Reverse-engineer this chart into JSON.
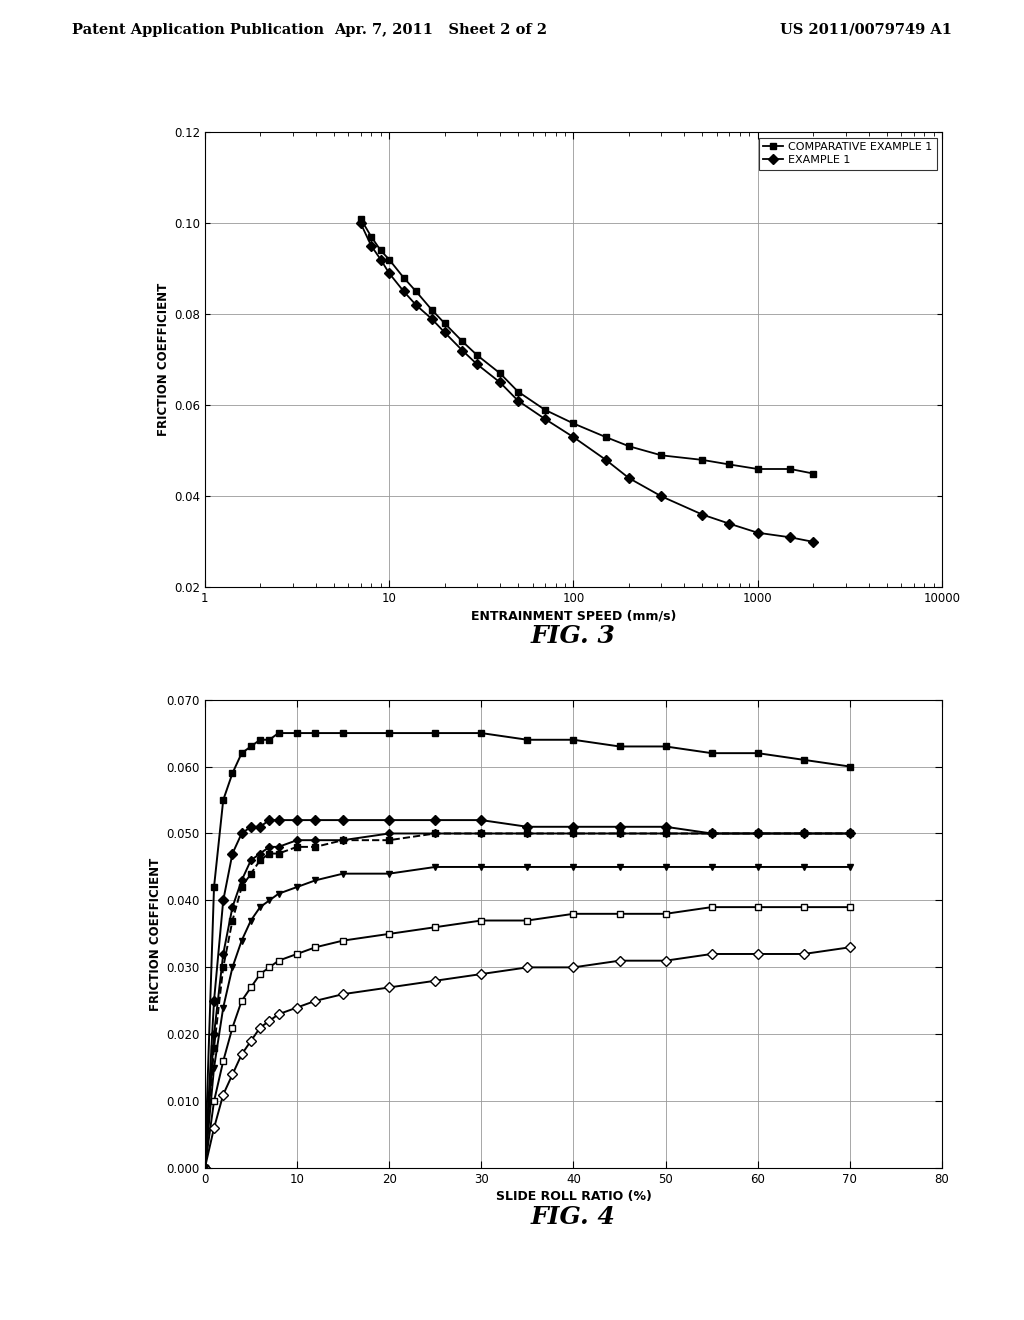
{
  "header_left": "Patent Application Publication",
  "header_mid": "Apr. 7, 2011   Sheet 2 of 2",
  "header_right": "US 2011/0079749 A1",
  "fig3": {
    "title": "FIG. 3",
    "xlabel": "ENTRAINMENT SPEED (mm/s)",
    "ylabel": "FRICTION COEFFICIENT",
    "xlim": [
      1,
      10000
    ],
    "ylim": [
      0.02,
      0.12
    ],
    "yticks": [
      0.02,
      0.04,
      0.06,
      0.08,
      0.1,
      0.12
    ],
    "legend": [
      "COMPARATIVE EXAMPLE 1",
      "EXAMPLE 1"
    ],
    "comp_x": [
      7,
      8,
      9,
      10,
      12,
      14,
      17,
      20,
      25,
      30,
      40,
      50,
      70,
      100,
      150,
      200,
      300,
      500,
      700,
      1000,
      1500,
      2000
    ],
    "comp_y": [
      0.101,
      0.097,
      0.094,
      0.092,
      0.088,
      0.085,
      0.081,
      0.078,
      0.074,
      0.071,
      0.067,
      0.063,
      0.059,
      0.056,
      0.053,
      0.051,
      0.049,
      0.048,
      0.047,
      0.046,
      0.046,
      0.045
    ],
    "ex1_x": [
      7,
      8,
      9,
      10,
      12,
      14,
      17,
      20,
      25,
      30,
      40,
      50,
      70,
      100,
      150,
      200,
      300,
      500,
      700,
      1000,
      1500,
      2000
    ],
    "ex1_y": [
      0.1,
      0.095,
      0.092,
      0.089,
      0.085,
      0.082,
      0.079,
      0.076,
      0.072,
      0.069,
      0.065,
      0.061,
      0.057,
      0.053,
      0.048,
      0.044,
      0.04,
      0.036,
      0.034,
      0.032,
      0.031,
      0.03
    ]
  },
  "fig4": {
    "title": "FIG. 4",
    "xlabel": "SLIDE ROLL RATIO (%)",
    "ylabel": "FRICTION COEFFICIENT",
    "xlim": [
      0,
      80
    ],
    "ylim": [
      0.0,
      0.07
    ],
    "yticks": [
      0.0,
      0.01,
      0.02,
      0.03,
      0.04,
      0.05,
      0.06,
      0.07
    ],
    "xticks": [
      0,
      10,
      20,
      30,
      40,
      50,
      60,
      70,
      80
    ],
    "x": [
      0,
      1,
      2,
      3,
      4,
      5,
      6,
      7,
      8,
      10,
      12,
      15,
      20,
      25,
      30,
      35,
      40,
      45,
      50,
      55,
      60,
      65,
      70
    ],
    "c1_y": [
      0.0,
      0.042,
      0.055,
      0.059,
      0.062,
      0.063,
      0.064,
      0.064,
      0.065,
      0.065,
      0.065,
      0.065,
      0.065,
      0.065,
      0.065,
      0.064,
      0.064,
      0.063,
      0.063,
      0.062,
      0.062,
      0.061,
      0.06
    ],
    "c2_y": [
      0.0,
      0.025,
      0.04,
      0.047,
      0.05,
      0.051,
      0.051,
      0.052,
      0.052,
      0.052,
      0.052,
      0.052,
      0.052,
      0.052,
      0.052,
      0.051,
      0.051,
      0.051,
      0.051,
      0.05,
      0.05,
      0.05,
      0.05
    ],
    "c3_y": [
      0.0,
      0.02,
      0.032,
      0.039,
      0.043,
      0.046,
      0.047,
      0.048,
      0.048,
      0.049,
      0.049,
      0.049,
      0.05,
      0.05,
      0.05,
      0.05,
      0.05,
      0.05,
      0.05,
      0.05,
      0.05,
      0.05,
      0.05
    ],
    "c4_y": [
      0.0,
      0.015,
      0.024,
      0.03,
      0.034,
      0.037,
      0.039,
      0.04,
      0.041,
      0.042,
      0.043,
      0.044,
      0.044,
      0.045,
      0.045,
      0.045,
      0.045,
      0.045,
      0.045,
      0.045,
      0.045,
      0.045,
      0.045
    ],
    "c5_y": [
      0.0,
      0.01,
      0.016,
      0.021,
      0.025,
      0.027,
      0.029,
      0.03,
      0.031,
      0.032,
      0.033,
      0.034,
      0.035,
      0.036,
      0.037,
      0.037,
      0.038,
      0.038,
      0.038,
      0.039,
      0.039,
      0.039,
      0.039
    ],
    "c6_y": [
      0.0,
      0.006,
      0.011,
      0.014,
      0.017,
      0.019,
      0.021,
      0.022,
      0.023,
      0.024,
      0.025,
      0.026,
      0.027,
      0.028,
      0.029,
      0.03,
      0.03,
      0.031,
      0.031,
      0.032,
      0.032,
      0.032,
      0.033
    ],
    "c3d_y": [
      0.0,
      0.018,
      0.03,
      0.037,
      0.042,
      0.044,
      0.046,
      0.047,
      0.047,
      0.048,
      0.048,
      0.049,
      0.049,
      0.05,
      0.05,
      0.05,
      0.05,
      0.05,
      0.05,
      0.05,
      0.05,
      0.05,
      0.05
    ]
  },
  "bg_color": "#ffffff",
  "line_color": "#000000"
}
